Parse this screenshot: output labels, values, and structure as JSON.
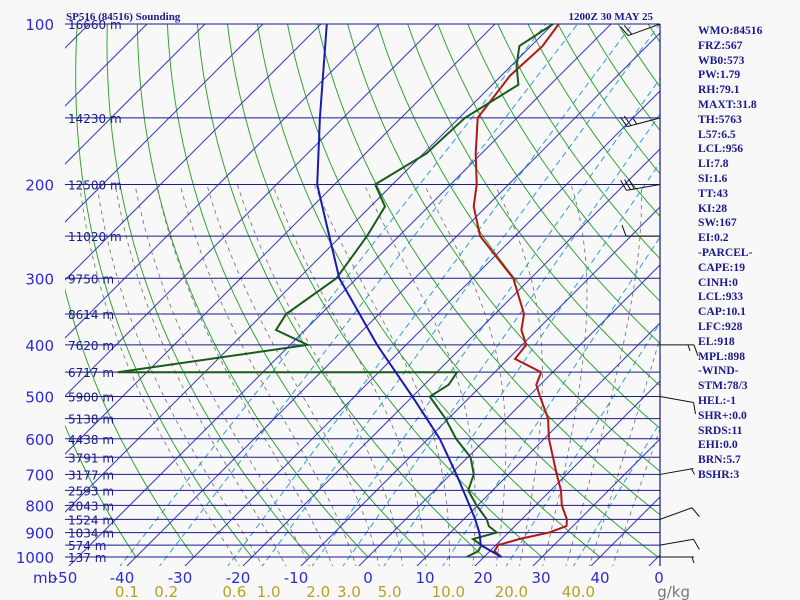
{
  "header": {
    "station": "SP516 (84516) Sounding",
    "time": "1200Z 30 MAY 25"
  },
  "indices": [
    "WMO:84516",
    "FRZ:567",
    "WB0:573",
    "PW:1.79",
    "RH:79.1",
    "MAXT:31.8",
    "TH:5763",
    "L57:6.5",
    "LCL:956",
    "LI:7.8",
    "SI:1.6",
    "TT:43",
    "KI:28",
    "SW:167",
    "EI:0.2",
    "-PARCEL-",
    "CAPE:19",
    "CINH:0",
    "LCL:933",
    "CAP:10.1",
    "LFC:928",
    "EL:918",
    "MPL:898",
    "-WIND-",
    "STM:78/3",
    "HEL:-1",
    "SHR+:0.0",
    "SRDS:11",
    "EHI:0.0",
    "BRN:5.7",
    "BSHR:3"
  ],
  "chart_data": {
    "type": "line",
    "title": "SP516 (84516) Sounding",
    "y_scale": "log-pressure",
    "ylim_hPa": [
      1000,
      100
    ],
    "xlim_C": [
      -50,
      0
    ],
    "pressure_labels": [
      "100",
      "200",
      "300",
      "400",
      "500",
      "600",
      "700",
      "800",
      "900",
      "1000"
    ],
    "height_levels": [
      {
        "p": 100,
        "label": "16660 m"
      },
      {
        "p": 150,
        "label": "14230 m"
      },
      {
        "p": 200,
        "label": "12500 m"
      },
      {
        "p": 250,
        "label": "11020 m"
      },
      {
        "p": 300,
        "label": "9750 m"
      },
      {
        "p": 350,
        "label": "8614 m"
      },
      {
        "p": 400,
        "label": "7620 m"
      },
      {
        "p": 450,
        "label": "6717 m"
      },
      {
        "p": 500,
        "label": "5900 m"
      },
      {
        "p": 550,
        "label": "5138 m"
      },
      {
        "p": 600,
        "label": "4438 m"
      },
      {
        "p": 650,
        "label": "3791 m"
      },
      {
        "p": 700,
        "label": "3177 m"
      },
      {
        "p": 750,
        "label": "2593 m"
      },
      {
        "p": 800,
        "label": "2043 m"
      },
      {
        "p": 850,
        "label": "1524 m"
      },
      {
        "p": 900,
        "label": "1034 m"
      },
      {
        "p": 950,
        "label": "574 m"
      },
      {
        "p": 1000,
        "label": "137 m"
      }
    ],
    "x_axis_prefix": "mb",
    "temperature_labels": [
      "-50",
      "-40",
      "-30",
      "-20",
      "-10",
      "0",
      "10",
      "20",
      "30",
      "40",
      "0"
    ],
    "mixing_ratio_labels": [
      "0.1",
      "0.2",
      "0.6",
      "1.0",
      "2.0",
      "3.0",
      "5.0",
      "10.0",
      "20.0",
      "40.0"
    ],
    "mixing_ratio_values": [
      0.1,
      0.2,
      0.6,
      1.0,
      2.0,
      3.0,
      5.0,
      10.0,
      20.0,
      40.0
    ],
    "mixing_ratio_unit": "g/kg",
    "series": [
      {
        "role": "temperature",
        "color": "#b01818",
        "points": [
          [
            1000,
            23.0
          ],
          [
            975,
            20.8
          ],
          [
            950,
            20.4
          ],
          [
            925,
            23.0
          ],
          [
            900,
            27.0
          ],
          [
            875,
            28.9
          ],
          [
            850,
            27.8
          ],
          [
            800,
            24.5
          ],
          [
            750,
            21.8
          ],
          [
            700,
            18.3
          ],
          [
            650,
            14.7
          ],
          [
            600,
            10.8
          ],
          [
            550,
            7.2
          ],
          [
            500,
            2.0
          ],
          [
            475,
            -0.7
          ],
          [
            450,
            -2.0
          ],
          [
            425,
            -8.8
          ],
          [
            400,
            -9.3
          ],
          [
            375,
            -12.7
          ],
          [
            350,
            -15.0
          ],
          [
            300,
            -23.0
          ],
          [
            250,
            -36.0
          ],
          [
            220,
            -42.2
          ],
          [
            200,
            -45.5
          ],
          [
            175,
            -51.0
          ],
          [
            150,
            -56.8
          ],
          [
            125,
            -58.5
          ],
          [
            110,
            -58.0
          ],
          [
            100,
            -59.0
          ]
        ]
      },
      {
        "role": "dewpoint",
        "color": "#1a5a1a",
        "points": [
          [
            1000,
            17.0
          ],
          [
            975,
            18.0
          ],
          [
            950,
            17.5
          ],
          [
            925,
            15.0
          ],
          [
            900,
            18.0
          ],
          [
            875,
            15.5
          ],
          [
            850,
            14.0
          ],
          [
            800,
            9.8
          ],
          [
            750,
            5.8
          ],
          [
            700,
            4.0
          ],
          [
            650,
            0.5
          ],
          [
            600,
            -5.2
          ],
          [
            550,
            -10.5
          ],
          [
            500,
            -17.0
          ],
          [
            475,
            -15.8
          ],
          [
            450,
            -16.5
          ],
          [
            450,
            -75.0
          ],
          [
            400,
            -47.0
          ],
          [
            375,
            -55.0
          ],
          [
            350,
            -56.0
          ],
          [
            300,
            -53.5
          ],
          [
            250,
            -55.5
          ],
          [
            220,
            -57.5
          ],
          [
            200,
            -63.0
          ],
          [
            175,
            -59.5
          ],
          [
            150,
            -59.0
          ],
          [
            130,
            -55.5
          ],
          [
            120,
            -59.0
          ],
          [
            110,
            -62.0
          ],
          [
            100,
            -60.0
          ]
        ]
      },
      {
        "role": "parcel",
        "color": "#1a1ab0",
        "points": [
          [
            1000,
            23.0
          ],
          [
            950,
            17.4
          ],
          [
            900,
            15.0
          ],
          [
            850,
            12.0
          ],
          [
            800,
            8.6
          ],
          [
            700,
            1.0
          ],
          [
            600,
            -8.0
          ],
          [
            500,
            -20.0
          ],
          [
            400,
            -35.0
          ],
          [
            300,
            -53.0
          ],
          [
            250,
            -62.0
          ],
          [
            200,
            -73.0
          ],
          [
            150,
            -84.0
          ],
          [
            100,
            -99.0
          ]
        ]
      }
    ],
    "wind_barbs": [
      {
        "p": 1000,
        "dir": 90,
        "speed": 5
      },
      {
        "p": 950,
        "dir": 80,
        "speed": 10
      },
      {
        "p": 850,
        "dir": 70,
        "speed": 10
      },
      {
        "p": 700,
        "dir": 80,
        "speed": 5
      },
      {
        "p": 500,
        "dir": 100,
        "speed": 10
      },
      {
        "p": 400,
        "dir": 90,
        "speed": 15
      },
      {
        "p": 250,
        "dir": 270,
        "speed": 10
      },
      {
        "p": 200,
        "dir": 260,
        "speed": 30
      },
      {
        "p": 150,
        "dir": 255,
        "speed": 25
      },
      {
        "p": 100,
        "dir": 250,
        "speed": 20
      }
    ]
  }
}
